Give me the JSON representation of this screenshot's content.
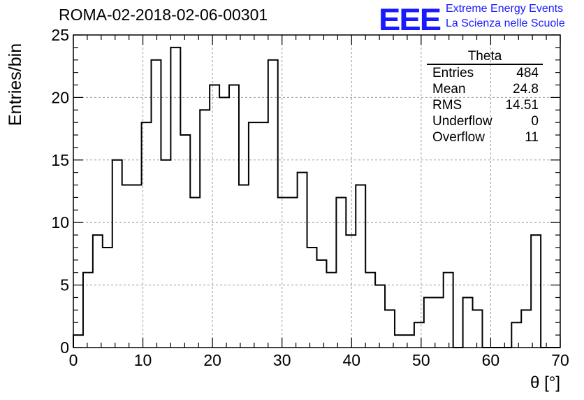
{
  "title": "ROMA-02-2018-02-06-00301",
  "logo": {
    "text": "EEE",
    "line1": "Extreme Energy Events",
    "line2": "La Scienza nelle Scuole",
    "color": "#1a1aff"
  },
  "stats": {
    "title": "Theta",
    "rows": [
      {
        "label": "Entries",
        "value": "484"
      },
      {
        "label": "Mean",
        "value": "24.8"
      },
      {
        "label": "RMS",
        "value": "14.51"
      },
      {
        "label": "Underflow",
        "value": "0"
      },
      {
        "label": "Overflow",
        "value": "11"
      }
    ]
  },
  "chart_data": {
    "type": "histogram",
    "title": "ROMA-02-2018-02-06-00301",
    "xlabel": "θ [°]",
    "ylabel": "Entries/bin",
    "xlim": [
      0,
      70
    ],
    "ylim": [
      0,
      25
    ],
    "xticks": [
      0,
      10,
      20,
      30,
      40,
      50,
      60,
      70
    ],
    "yticks": [
      0,
      5,
      10,
      15,
      20,
      25
    ],
    "grid": true,
    "bin_width": 1.4,
    "bin_edges_start": 0,
    "values": [
      1,
      6,
      9,
      8,
      15,
      13,
      13,
      18,
      23,
      15,
      24,
      17,
      12,
      19,
      21,
      20,
      21,
      13,
      18,
      18,
      23,
      12,
      12,
      14,
      8,
      7,
      6,
      12,
      9,
      13,
      6,
      5,
      3,
      1,
      1,
      2,
      4,
      4,
      6,
      0,
      4,
      3,
      0,
      0,
      0,
      2,
      3,
      9,
      0,
      0
    ],
    "line_color": "#000000"
  }
}
